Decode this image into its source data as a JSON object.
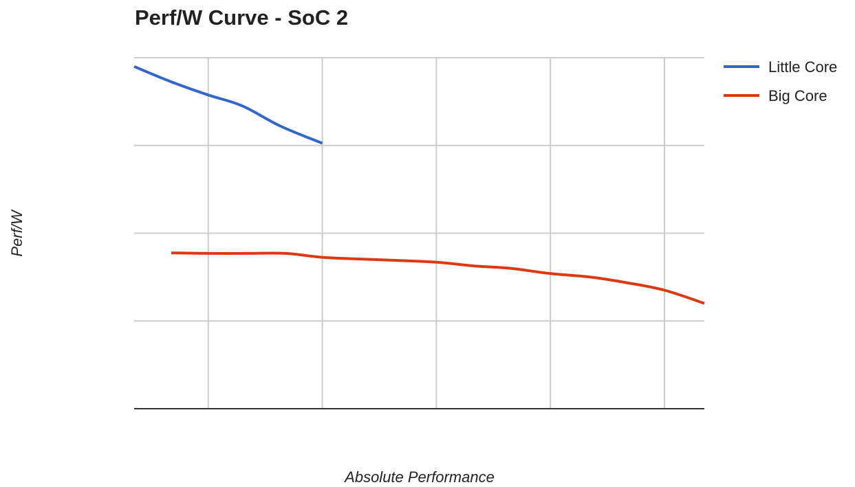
{
  "chart_data": {
    "type": "line",
    "title": "Perf/W Curve - SoC 2",
    "xlabel": "Absolute Performance",
    "ylabel": "Perf/W",
    "xlim": [
      0,
      10
    ],
    "ylim": [
      0,
      8
    ],
    "grid": true,
    "legend_position": "right",
    "series": [
      {
        "name": "Little Core",
        "color": "#3366cc",
        "x": [
          0,
          0.65,
          1.3,
          1.9,
          2.55,
          3.3
        ],
        "y": [
          7.8,
          7.45,
          7.15,
          6.9,
          6.45,
          6.05
        ]
      },
      {
        "name": "Big Core",
        "color": "#dc3912",
        "x": [
          0.65,
          1.3,
          2.0,
          2.65,
          3.3,
          4.0,
          4.6,
          5.3,
          6.0,
          6.6,
          7.3,
          8.0,
          8.6,
          9.3,
          10.0
        ],
        "y": [
          3.55,
          3.54,
          3.54,
          3.54,
          3.45,
          3.41,
          3.38,
          3.34,
          3.25,
          3.2,
          3.08,
          3.0,
          2.88,
          2.7,
          2.4
        ]
      }
    ]
  }
}
